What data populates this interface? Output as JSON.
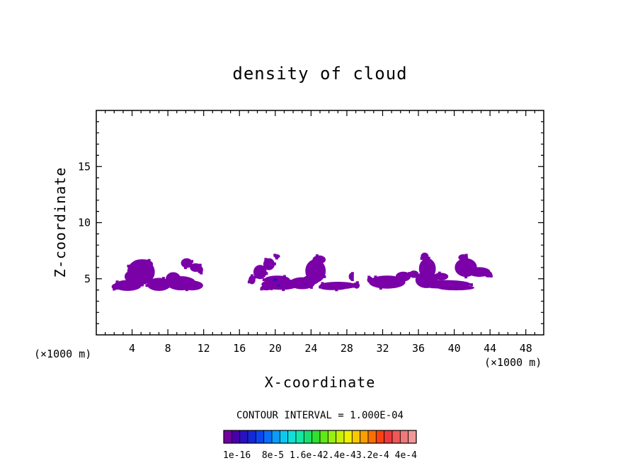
{
  "chart_data": {
    "type": "heatmap",
    "title": "density of cloud",
    "xlabel": "X-coordinate",
    "ylabel": "Z-coordinate",
    "x_unit": "(×1000 m)",
    "z_unit": "(×1000 m)",
    "xlim": [
      0,
      50
    ],
    "ylim": [
      0,
      20
    ],
    "x_ticks": [
      4,
      8,
      12,
      16,
      20,
      24,
      28,
      32,
      36,
      40,
      44,
      48
    ],
    "y_ticks": [
      5,
      10,
      15
    ],
    "contour_interval_text": "CONTOUR INTERVAL = 1.000E-04",
    "colorbar": {
      "colors": [
        "#7400a0",
        "#4a00a8",
        "#2a10c0",
        "#1428d8",
        "#0c44f0",
        "#0870f8",
        "#0a9cf8",
        "#0cc8f0",
        "#10e0d8",
        "#14e8a8",
        "#18e070",
        "#30e030",
        "#60e818",
        "#98f010",
        "#c8f008",
        "#f0f000",
        "#f8c800",
        "#f8a000",
        "#f87000",
        "#f84010",
        "#f03838",
        "#f05858",
        "#f07878",
        "#f09898"
      ],
      "labels": [
        "1e-16",
        "8e-5",
        "1.6e-4",
        "2.4e-4",
        "3.2e-4",
        "4e-4"
      ],
      "label_text": "1e-16  8e-5 1.6e-42.4e-43.2e-4 4e-4"
    },
    "cloud_color": "#7a00a8",
    "cloud_dark_color": "#2a10c0",
    "regions": [
      {
        "name": "cloud-region-west",
        "x": [
          1.5,
          12
        ],
        "z": [
          4.0,
          6.7
        ]
      },
      {
        "name": "cloud-region-central",
        "x": [
          16.8,
          29
        ],
        "z": [
          4.0,
          7.1
        ]
      },
      {
        "name": "cloud-region-east",
        "x": [
          30.5,
          44.2
        ],
        "z": [
          4.0,
          7.3
        ]
      }
    ]
  }
}
